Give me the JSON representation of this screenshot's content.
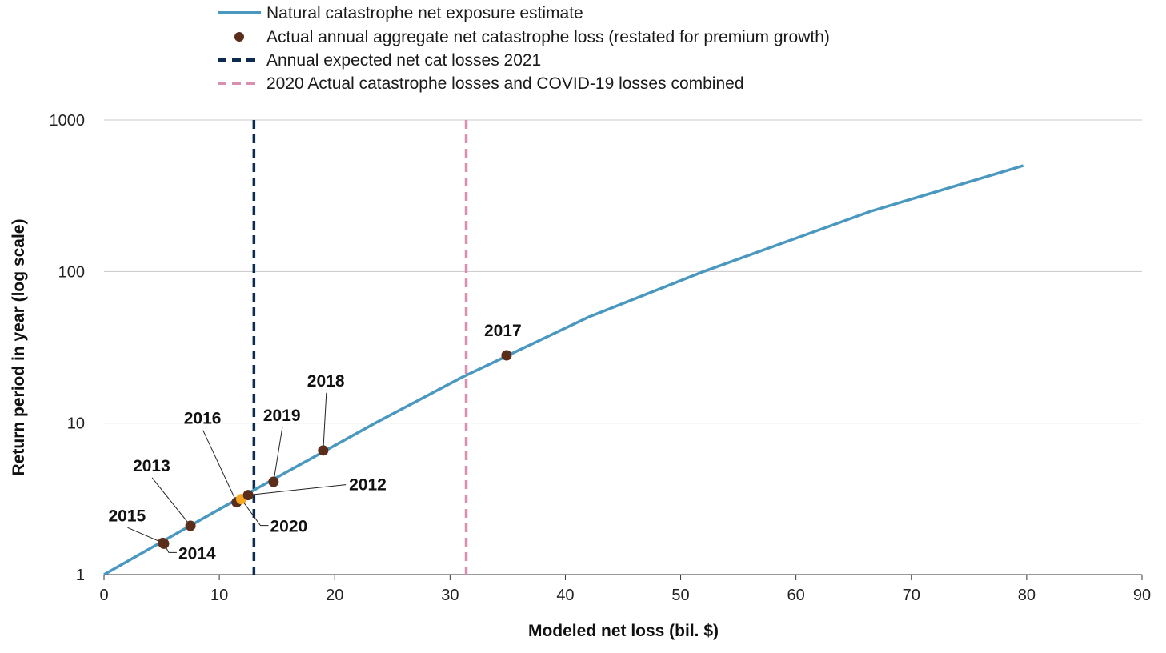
{
  "chart_data": {
    "type": "line",
    "x_axis": {
      "label": "Modeled net loss (bil. $)",
      "min": 0,
      "max": 90,
      "ticks": [
        "0",
        "10",
        "20",
        "30",
        "40",
        "50",
        "60",
        "70",
        "80",
        "90"
      ]
    },
    "y_axis": {
      "label": "Return period in year (log scale)",
      "scale": "log",
      "min": 1,
      "max": 1000,
      "ticks": [
        "1",
        "10",
        "100",
        "1000"
      ]
    },
    "grid": "horizontal",
    "legend_position": "top",
    "series": [
      {
        "name": "Natural catastrophe net exposure estimate",
        "kind": "line",
        "color": "#4a98c0",
        "points": [
          [
            0,
            1
          ],
          [
            10,
            2.7
          ],
          [
            23.5,
            10
          ],
          [
            31,
            20
          ],
          [
            42,
            50
          ],
          [
            52,
            100
          ],
          [
            66.5,
            250
          ],
          [
            79.7,
            500
          ]
        ]
      },
      {
        "name": "Actual annual aggregate net catastrophe loss (restated for premium growth)",
        "kind": "scatter",
        "color": "#5a2e1a",
        "highlight_color": "#f5a623",
        "points": [
          {
            "year": "2015",
            "x": 5.1,
            "y": 1.62
          },
          {
            "year": "2014",
            "x": 5.2,
            "y": 1.6
          },
          {
            "year": "2013",
            "x": 7.5,
            "y": 2.1
          },
          {
            "year": "2016",
            "x": 11.5,
            "y": 3.0
          },
          {
            "year": "2020",
            "x": 11.9,
            "y": 3.15,
            "highlight": true
          },
          {
            "year": "2012",
            "x": 12.5,
            "y": 3.35
          },
          {
            "year": "2019",
            "x": 14.7,
            "y": 4.1
          },
          {
            "year": "2018",
            "x": 19.0,
            "y": 6.6
          },
          {
            "year": "2017",
            "x": 34.9,
            "y": 28
          }
        ]
      },
      {
        "name": "Annual expected net cat losses 2021",
        "kind": "vline",
        "x": 13.0,
        "color": "#0d2a4f"
      },
      {
        "name": "2020 Actual catastrophe losses and COVID-19 losses combined",
        "kind": "vline",
        "x": 31.4,
        "color": "#d98fb0"
      }
    ]
  }
}
